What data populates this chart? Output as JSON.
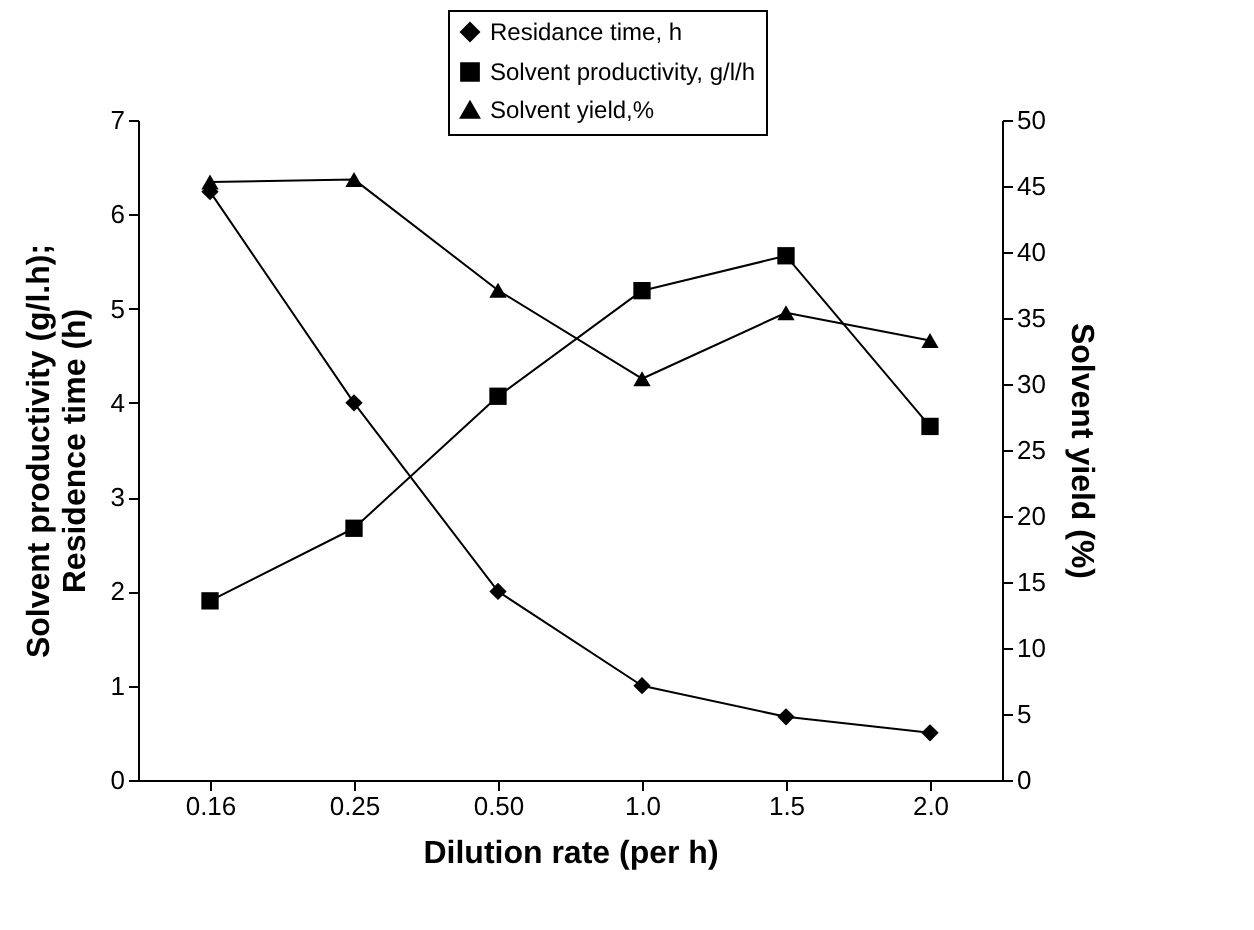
{
  "chart_data": {
    "type": "line",
    "xlabel": "Dilution rate (per h)",
    "ylabel": "Solvent productivity (g/l.h);\nResidence time (h)",
    "y2label": "Solvent yield (%)",
    "categories": [
      "0.16",
      "0.25",
      "0.50",
      "1.0",
      "1.5",
      "2.0"
    ],
    "ylim": [
      0,
      7
    ],
    "yticks": [
      0,
      1,
      2,
      3,
      4,
      5,
      6,
      7
    ],
    "y2lim": [
      0,
      50
    ],
    "y2ticks": [
      0,
      5,
      10,
      15,
      20,
      25,
      30,
      35,
      40,
      45,
      50
    ],
    "legend": "top right",
    "grid": false,
    "series": [
      {
        "name": "Residance time, h",
        "color": "#000000",
        "marker": "diamond",
        "values": [
          6.24,
          4.0,
          2.0,
          1.0,
          0.67,
          0.5
        ]
      },
      {
        "name": "Solvent productivity, g/l/h",
        "color": "#000000",
        "marker": "square",
        "values": [
          1.9,
          2.67,
          4.07,
          5.19,
          5.56,
          3.75
        ]
      },
      {
        "name": "Solvent yield,%",
        "color": "#000000",
        "marker": "triangle",
        "axis": "y2",
        "values": [
          45.3,
          45.5,
          37.1,
          30.4,
          35.4,
          33.3
        ]
      }
    ]
  }
}
